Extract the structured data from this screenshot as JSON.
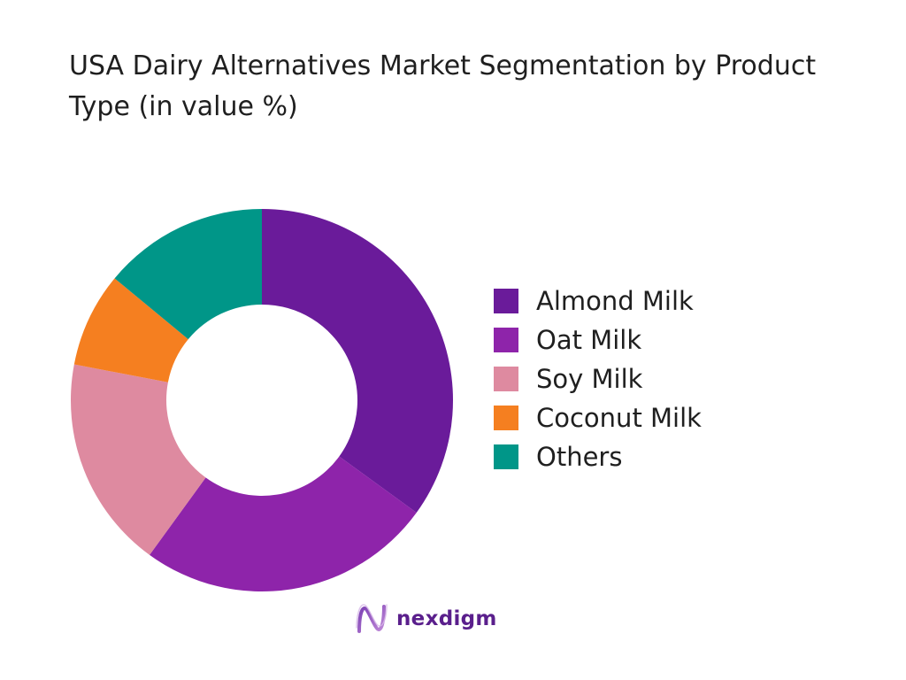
{
  "chart_data": {
    "type": "pie",
    "title": "USA Dairy Alternatives Market Segmentation by Product Type (in value %)",
    "donut": true,
    "legend_position": "right",
    "series": [
      {
        "name": "Almond Milk",
        "value": 35,
        "color": "#6a1b9a"
      },
      {
        "name": "Oat Milk",
        "value": 25,
        "color": "#8e24aa"
      },
      {
        "name": "Soy Milk",
        "value": 18,
        "color": "#de8aa0"
      },
      {
        "name": "Coconut Milk",
        "value": 8,
        "color": "#f57f20"
      },
      {
        "name": "Others",
        "value": 14,
        "color": "#009688"
      }
    ]
  },
  "brand": {
    "name": "nexdigm",
    "logo_icon": "nexdigm-logo-icon"
  }
}
